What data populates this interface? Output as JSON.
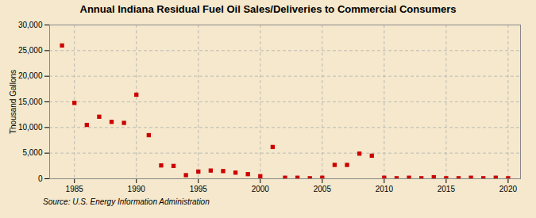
{
  "chart_data": {
    "type": "scatter",
    "title": "Annual Indiana Residual Fuel Oil Sales/Deliveries to Commercial Consumers",
    "ylabel": "Thousand Gallons",
    "source": "Source: U.S. Energy Information Administration",
    "color": "#cc0000",
    "marker": "square",
    "grid": true,
    "xlim": [
      1983,
      2021
    ],
    "ylim": [
      0,
      30000
    ],
    "xticks": [
      1985,
      1990,
      1995,
      2000,
      2005,
      2010,
      2015,
      2020
    ],
    "yticks": [
      0,
      {
        "value": 5000,
        "label": "5,000"
      },
      {
        "value": 10000,
        "label": "10,000"
      },
      {
        "value": 15000,
        "label": "15,000"
      },
      {
        "value": 20000,
        "label": "20,000"
      },
      {
        "value": 25000,
        "label": "25,000"
      },
      {
        "value": 30000,
        "label": "30,000"
      }
    ],
    "x": [
      1984,
      1985,
      1986,
      1987,
      1988,
      1989,
      1990,
      1991,
      1992,
      1993,
      1994,
      1995,
      1996,
      1997,
      1998,
      1999,
      2000,
      2001,
      2002,
      2003,
      2004,
      2005,
      2006,
      2007,
      2008,
      2009,
      2010,
      2011,
      2012,
      2013,
      2014,
      2015,
      2016,
      2017,
      2018,
      2019,
      2020
    ],
    "values": [
      26000,
      14800,
      10500,
      12100,
      11100,
      10900,
      16400,
      8500,
      2600,
      2500,
      700,
      1400,
      1600,
      1500,
      1200,
      900,
      500,
      6200,
      200,
      200,
      100,
      200,
      2700,
      2700,
      4900,
      4500,
      200,
      100,
      200,
      100,
      300,
      100,
      100,
      200,
      100,
      200,
      100
    ]
  }
}
